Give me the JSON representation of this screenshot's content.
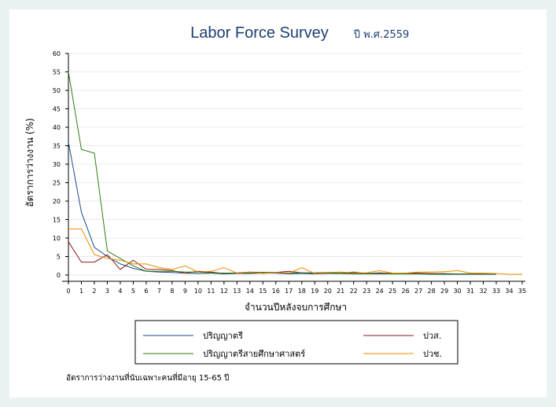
{
  "chart_data": {
    "type": "line",
    "title": "Labor Force Survey",
    "subtitle": "ปี พ.ศ.2559",
    "xlabel": "จำนวนปีหลังจบการศึกษา",
    "ylabel": "อัตราการว่างงาน (%)",
    "xlim": [
      0,
      35
    ],
    "ylim": [
      0,
      60
    ],
    "x": [
      0,
      1,
      2,
      3,
      4,
      5,
      6,
      7,
      8,
      9,
      10,
      11,
      12,
      13,
      14,
      15,
      16,
      17,
      18,
      19,
      20,
      21,
      22,
      23,
      24,
      25,
      26,
      27,
      28,
      29,
      30,
      31,
      32,
      33,
      34,
      35
    ],
    "yticks": [
      0,
      5,
      10,
      15,
      20,
      25,
      30,
      35,
      40,
      45,
      50,
      55,
      60
    ],
    "grid": true,
    "legend_position": "bottom",
    "series": [
      {
        "name": "ปริญญาตรี",
        "color": "#1a4a8a",
        "values": [
          36,
          17,
          7.5,
          5,
          3,
          1.8,
          1,
          0.8,
          0.7,
          0.5,
          0.4,
          0.5,
          0.3,
          0.4,
          0.4,
          0.5,
          0.5,
          0.3,
          0.4,
          0.3,
          0.4,
          0.4,
          0.3,
          0.3,
          0.3,
          0.3,
          0.3,
          0.3,
          0.2,
          0.2,
          0.2,
          0.2,
          0.2,
          0.2,
          null,
          null
        ]
      },
      {
        "name": "ปวส.",
        "color": "#8b1a1a",
        "values": [
          9,
          3.5,
          3.5,
          5.5,
          1.5,
          4,
          1.5,
          1.5,
          1.2,
          0.5,
          1,
          0.8,
          0.4,
          0.6,
          0.8,
          0.7,
          0.7,
          1,
          0.6,
          0.6,
          0.7,
          0.5,
          0.8,
          0.4,
          0.6,
          0.4,
          0.5,
          0.5,
          0.4,
          0.4,
          0.3,
          0.3,
          0.3,
          0.4,
          null,
          null
        ]
      },
      {
        "name": "ปริญญาตรีสายศึกษาศาสตร์",
        "color": "#2e7d14",
        "values": [
          55,
          34,
          33,
          6.5,
          4.5,
          2.5,
          1,
          1,
          1,
          0.8,
          0.8,
          0.6,
          0.5,
          0.5,
          0.6,
          0.7,
          0.7,
          0.6,
          0.6,
          0.5,
          0.5,
          0.5,
          0.4,
          0.4,
          0.4,
          0.3,
          0.3,
          0.3,
          0.3,
          0.3,
          0.3,
          0.3,
          0.3,
          0.3,
          null,
          null
        ]
      },
      {
        "name": "ปวช.",
        "color": "#f08a00",
        "values": [
          12.5,
          12.5,
          5.5,
          4.5,
          4,
          3,
          3,
          2,
          1.5,
          2.5,
          0.8,
          1,
          2,
          0.5,
          0.8,
          0.4,
          0.7,
          0.5,
          2,
          0.4,
          0.7,
          0.8,
          0.6,
          0.6,
          1.2,
          0.5,
          0.5,
          0.8,
          0.8,
          0.9,
          1.2,
          0.5,
          0.5,
          0.4,
          0.2,
          0.2
        ]
      }
    ],
    "note": "อัตราการว่างงานที่นับเฉพาะคนที่มีอายุ 15-65 ปี"
  }
}
